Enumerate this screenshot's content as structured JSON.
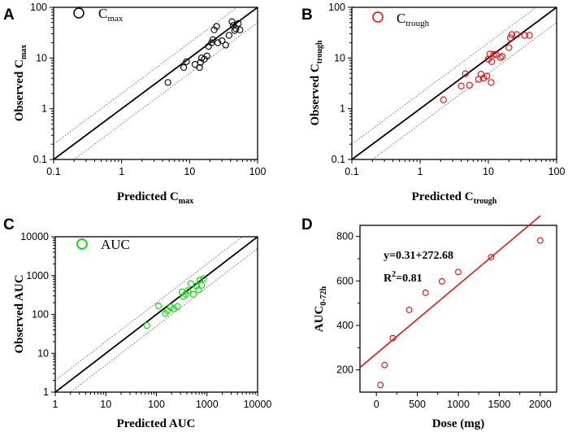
{
  "chart_data": [
    {
      "panel": "A",
      "type": "scatter",
      "scale": "log",
      "legend": {
        "marker_color": "#000000",
        "label": "C",
        "label_sub": "max"
      },
      "xlabel": "Predicted C",
      "xlabel_sub": "max",
      "ylabel": "Observed C",
      "ylabel_sub": "max",
      "xlim": [
        0.1,
        100
      ],
      "ylim": [
        0.1,
        100
      ],
      "xticks": [
        "0.1",
        "1",
        "10",
        "100"
      ],
      "yticks": [
        "0.1",
        "1",
        "10",
        "100"
      ],
      "marker_color": "#000000",
      "points": [
        [
          4.8,
          3.3
        ],
        [
          8.2,
          6.5
        ],
        [
          9.0,
          8.5
        ],
        [
          12.0,
          7.5
        ],
        [
          14.0,
          6.5
        ],
        [
          14.5,
          8.2
        ],
        [
          15.0,
          10.0
        ],
        [
          16.5,
          9.5
        ],
        [
          18.0,
          11.0
        ],
        [
          19.0,
          17.0
        ],
        [
          21.0,
          20.0
        ],
        [
          22.0,
          23.0
        ],
        [
          23.0,
          36.0
        ],
        [
          25.0,
          42.0
        ],
        [
          26.0,
          20.0
        ],
        [
          30.0,
          22.0
        ],
        [
          34.0,
          18.0
        ],
        [
          38.0,
          28.0
        ],
        [
          42.0,
          52.0
        ],
        [
          44.0,
          44.0
        ],
        [
          46.0,
          35.0
        ],
        [
          48.0,
          38.0
        ],
        [
          52.0,
          48.0
        ],
        [
          55.0,
          36.0
        ]
      ]
    },
    {
      "panel": "B",
      "type": "scatter",
      "scale": "log",
      "legend": {
        "marker_color": "#ff0000",
        "label": "C",
        "label_sub": "trough"
      },
      "xlabel": "Predicted C",
      "xlabel_sub": "trough",
      "ylabel": "Observed C",
      "ylabel_sub": "trough",
      "xlim": [
        0.1,
        100
      ],
      "ylim": [
        0.1,
        100
      ],
      "xticks": [
        "0.1",
        "1",
        "10",
        "100"
      ],
      "yticks": [
        "0.1",
        "1",
        "10",
        "100"
      ],
      "marker_color": "#ff0000",
      "points": [
        [
          2.2,
          1.5
        ],
        [
          4.0,
          2.8
        ],
        [
          4.6,
          4.9
        ],
        [
          5.3,
          2.9
        ],
        [
          7.2,
          3.8
        ],
        [
          7.8,
          4.8
        ],
        [
          8.5,
          4.0
        ],
        [
          9.5,
          4.4
        ],
        [
          10.0,
          9.5
        ],
        [
          10.5,
          12.0
        ],
        [
          11.0,
          3.3
        ],
        [
          11.2,
          8.5
        ],
        [
          12.0,
          11.8
        ],
        [
          13.0,
          11.8
        ],
        [
          15.0,
          10.2
        ],
        [
          16.0,
          10.8
        ],
        [
          20.0,
          16.0
        ],
        [
          21.0,
          25.0
        ],
        [
          22.0,
          29.0
        ],
        [
          26.0,
          29.0
        ],
        [
          34.0,
          28.0
        ],
        [
          40.0,
          28.0
        ]
      ]
    },
    {
      "panel": "C",
      "type": "scatter",
      "scale": "log",
      "legend": {
        "marker_color": "#00dd00",
        "label": "AUC",
        "label_sub": ""
      },
      "xlabel": "Predicted AUC",
      "xlabel_sub": "",
      "ylabel": "Observed AUC",
      "ylabel_sub": "",
      "xlim": [
        1,
        10000
      ],
      "ylim": [
        1,
        10000
      ],
      "xticks": [
        "1",
        "10",
        "100",
        "1000",
        "10000"
      ],
      "yticks": [
        "1",
        "10",
        "100",
        "1000",
        "10000"
      ],
      "marker_color": "#00dd00",
      "points": [
        [
          65,
          52
        ],
        [
          110,
          165
        ],
        [
          150,
          105
        ],
        [
          165,
          125
        ],
        [
          190,
          155
        ],
        [
          220,
          140
        ],
        [
          260,
          160
        ],
        [
          320,
          380
        ],
        [
          340,
          290
        ],
        [
          380,
          330
        ],
        [
          420,
          410
        ],
        [
          480,
          620
        ],
        [
          540,
          330
        ],
        [
          620,
          540
        ],
        [
          680,
          430
        ],
        [
          720,
          760
        ],
        [
          780,
          560
        ],
        [
          850,
          830
        ]
      ]
    },
    {
      "panel": "D",
      "type": "scatter",
      "scale": "linear",
      "xlabel": "Dose (mg)",
      "ylabel": "AUC",
      "ylabel_sub": "0-72h",
      "xlim": [
        -200,
        2200
      ],
      "ylim": [
        100,
        850
      ],
      "xticks": [
        0,
        500,
        1000,
        1500,
        2000
      ],
      "yticks": [
        200,
        400,
        600,
        800
      ],
      "marker_color": "#ff0000",
      "line_color": "#ff0000",
      "fit": {
        "slope": 0.31,
        "intercept": 272.68
      },
      "equation": "y=0.31+272.68",
      "r2_label": "R",
      "r2_sup": "2",
      "r2_value": "=0.81",
      "points": [
        [
          50,
          132
        ],
        [
          100,
          222
        ],
        [
          200,
          343
        ],
        [
          400,
          470
        ],
        [
          600,
          547
        ],
        [
          800,
          598
        ],
        [
          1000,
          640
        ],
        [
          1400,
          707
        ],
        [
          2000,
          782
        ]
      ]
    }
  ]
}
